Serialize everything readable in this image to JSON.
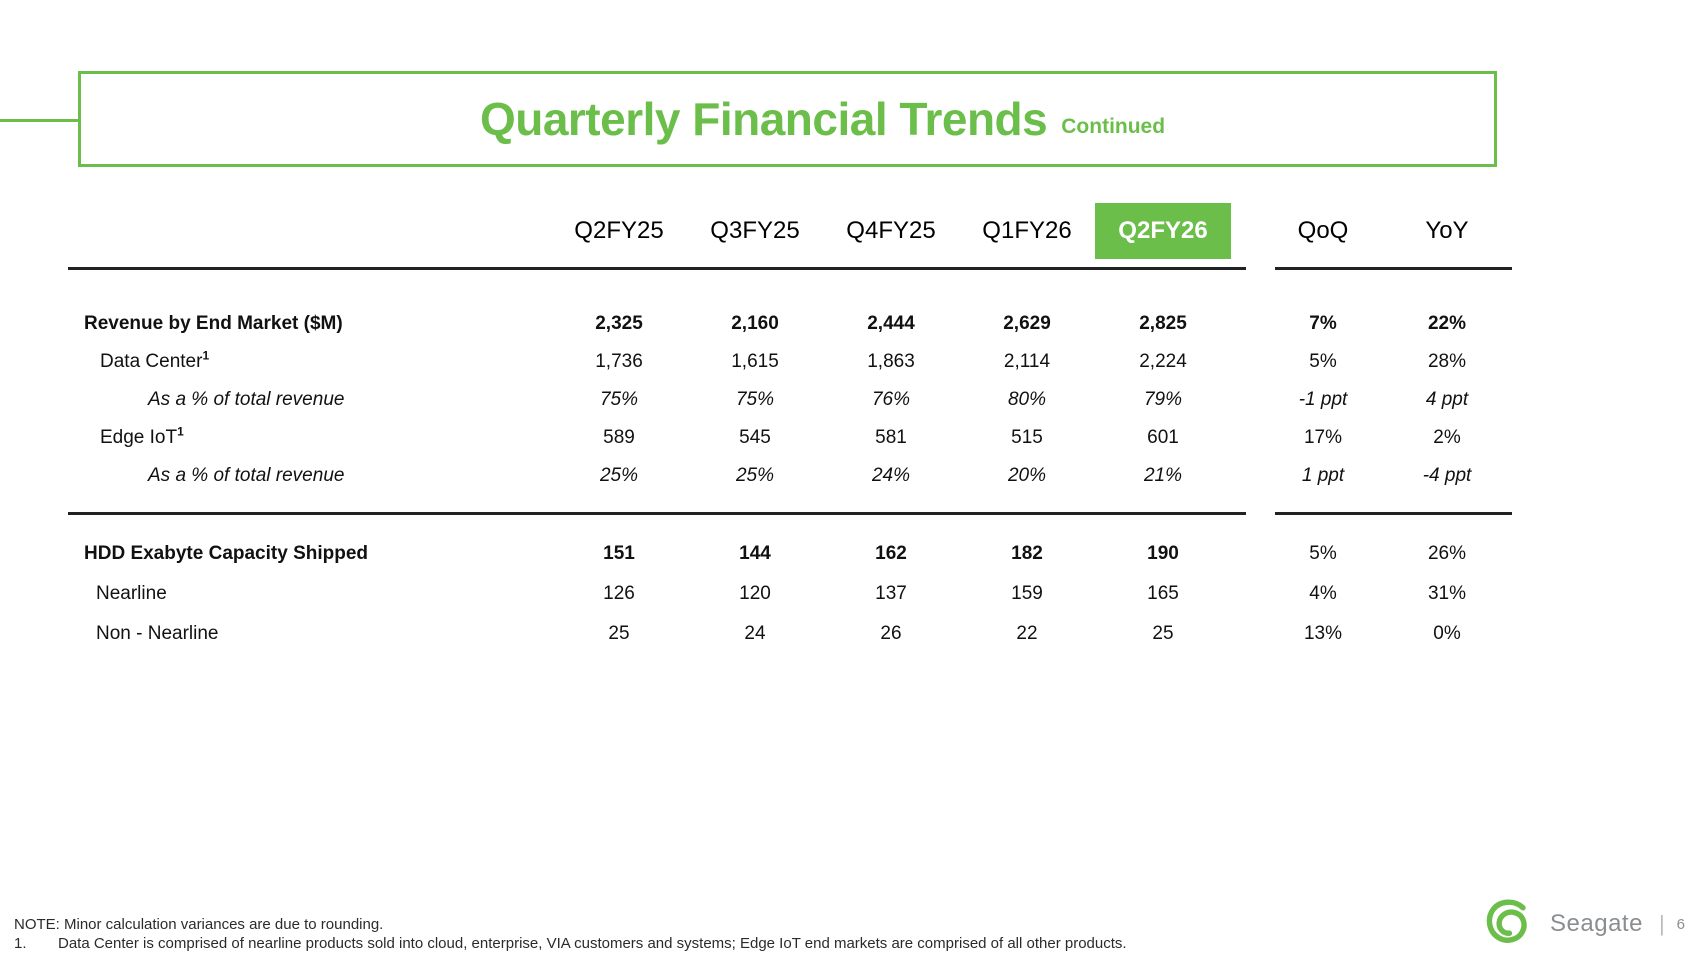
{
  "slide": {
    "title": "Quarterly Financial Trends",
    "title_suffix": "Continued",
    "brand": "Seagate",
    "page_number": "6"
  },
  "colors": {
    "accent_green": "#6CBE4B",
    "header_text": "#000000",
    "divider": "#222222",
    "brand_gray": "#8b8e90"
  },
  "icons": {
    "seagate_logo": "seagate-swirl"
  },
  "table": {
    "columns": [
      "Q2FY25",
      "Q3FY25",
      "Q4FY25",
      "Q1FY26",
      "Q2FY26",
      "QoQ",
      "YoY"
    ],
    "highlighted_column": "Q2FY26",
    "highlighted_index": 4,
    "sections": [
      {
        "rows": [
          {
            "label": "Revenue by End Market ($M)",
            "sup": "",
            "style": "bold",
            "indent": 0,
            "bold_values_through": 7,
            "values": [
              "2,325",
              "2,160",
              "2,444",
              "2,629",
              "2,825",
              "7%",
              "22%"
            ]
          },
          {
            "label": "Data Center",
            "sup": "1",
            "style": "plain",
            "indent": 1,
            "bold_values_through": 0,
            "values": [
              "1,736",
              "1,615",
              "1,863",
              "2,114",
              "2,224",
              "5%",
              "28%"
            ]
          },
          {
            "label": "As a % of total revenue",
            "sup": "",
            "style": "italic",
            "indent": 2,
            "bold_values_through": 0,
            "values": [
              "75%",
              "75%",
              "76%",
              "80%",
              "79%",
              "-1 ppt",
              "4 ppt"
            ]
          },
          {
            "label": "Edge IoT",
            "sup": "1",
            "style": "plain",
            "indent": 1,
            "bold_values_through": 0,
            "values": [
              "589",
              "545",
              "581",
              "515",
              "601",
              "17%",
              "2%"
            ]
          },
          {
            "label": "As a % of total revenue",
            "sup": "",
            "style": "italic",
            "indent": 2,
            "bold_values_through": 0,
            "values": [
              "25%",
              "25%",
              "24%",
              "20%",
              "21%",
              "1 ppt",
              "-4 ppt"
            ]
          }
        ]
      },
      {
        "rows": [
          {
            "label": "HDD Exabyte Capacity Shipped",
            "sup": "",
            "style": "bold",
            "indent": 0,
            "bold_values_through": 5,
            "values": [
              "151",
              "144",
              "162",
              "182",
              "190",
              "5%",
              "26%"
            ]
          },
          {
            "label": "Nearline",
            "sup": "",
            "style": "plain",
            "indent": 3,
            "bold_values_through": 0,
            "values": [
              "126",
              "120",
              "137",
              "159",
              "165",
              "4%",
              "31%"
            ]
          },
          {
            "label": "Non - Nearline",
            "sup": "",
            "style": "plain",
            "indent": 3,
            "bold_values_through": 0,
            "values": [
              "25",
              "24",
              "26",
              "22",
              "25",
              "13%",
              "0%"
            ]
          }
        ]
      }
    ]
  },
  "footer": {
    "note": "NOTE: Minor calculation variances are due to rounding.",
    "footnote_number": "1.",
    "footnote_text": "Data Center is comprised of nearline products sold into cloud, enterprise, VIA customers and systems; Edge IoT end markets are comprised of all other products."
  }
}
